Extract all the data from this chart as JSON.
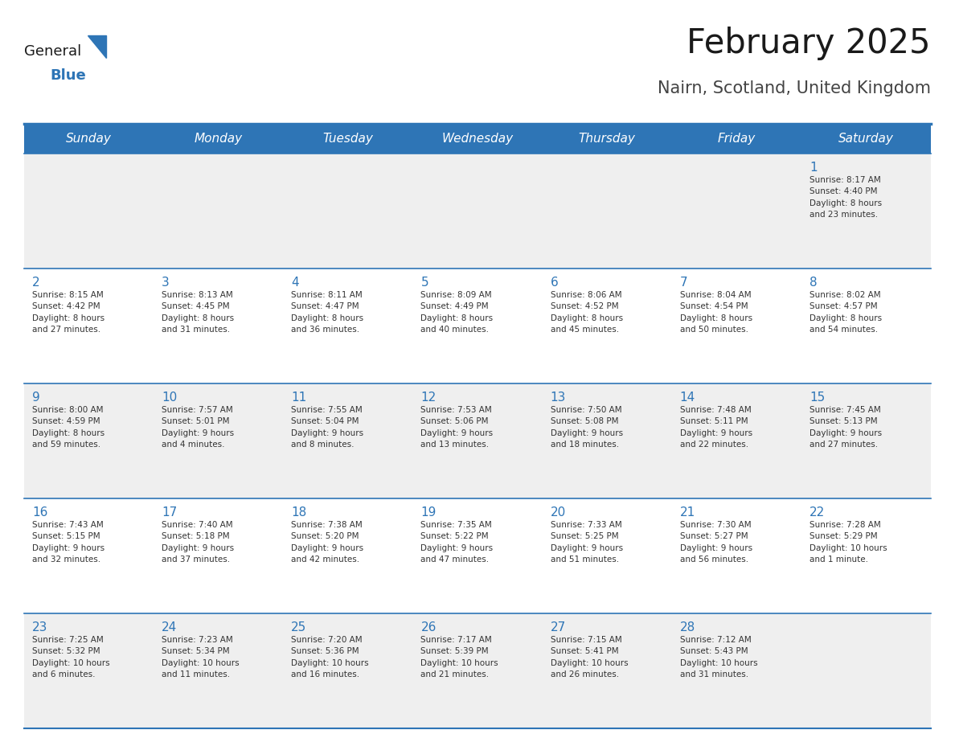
{
  "title": "February 2025",
  "subtitle": "Nairn, Scotland, United Kingdom",
  "header_bg": "#2E75B6",
  "header_text_color": "#FFFFFF",
  "cell_bg_odd": "#EFEFEF",
  "cell_bg_even": "#FFFFFF",
  "border_color": "#2E75B6",
  "text_color": "#333333",
  "day_number_color": "#2E75B6",
  "separator_color": "#2E75B6",
  "days_of_week": [
    "Sunday",
    "Monday",
    "Tuesday",
    "Wednesday",
    "Thursday",
    "Friday",
    "Saturday"
  ],
  "weeks": [
    [
      {
        "day": null,
        "info": null
      },
      {
        "day": null,
        "info": null
      },
      {
        "day": null,
        "info": null
      },
      {
        "day": null,
        "info": null
      },
      {
        "day": null,
        "info": null
      },
      {
        "day": null,
        "info": null
      },
      {
        "day": 1,
        "info": "Sunrise: 8:17 AM\nSunset: 4:40 PM\nDaylight: 8 hours\nand 23 minutes."
      }
    ],
    [
      {
        "day": 2,
        "info": "Sunrise: 8:15 AM\nSunset: 4:42 PM\nDaylight: 8 hours\nand 27 minutes."
      },
      {
        "day": 3,
        "info": "Sunrise: 8:13 AM\nSunset: 4:45 PM\nDaylight: 8 hours\nand 31 minutes."
      },
      {
        "day": 4,
        "info": "Sunrise: 8:11 AM\nSunset: 4:47 PM\nDaylight: 8 hours\nand 36 minutes."
      },
      {
        "day": 5,
        "info": "Sunrise: 8:09 AM\nSunset: 4:49 PM\nDaylight: 8 hours\nand 40 minutes."
      },
      {
        "day": 6,
        "info": "Sunrise: 8:06 AM\nSunset: 4:52 PM\nDaylight: 8 hours\nand 45 minutes."
      },
      {
        "day": 7,
        "info": "Sunrise: 8:04 AM\nSunset: 4:54 PM\nDaylight: 8 hours\nand 50 minutes."
      },
      {
        "day": 8,
        "info": "Sunrise: 8:02 AM\nSunset: 4:57 PM\nDaylight: 8 hours\nand 54 minutes."
      }
    ],
    [
      {
        "day": 9,
        "info": "Sunrise: 8:00 AM\nSunset: 4:59 PM\nDaylight: 8 hours\nand 59 minutes."
      },
      {
        "day": 10,
        "info": "Sunrise: 7:57 AM\nSunset: 5:01 PM\nDaylight: 9 hours\nand 4 minutes."
      },
      {
        "day": 11,
        "info": "Sunrise: 7:55 AM\nSunset: 5:04 PM\nDaylight: 9 hours\nand 8 minutes."
      },
      {
        "day": 12,
        "info": "Sunrise: 7:53 AM\nSunset: 5:06 PM\nDaylight: 9 hours\nand 13 minutes."
      },
      {
        "day": 13,
        "info": "Sunrise: 7:50 AM\nSunset: 5:08 PM\nDaylight: 9 hours\nand 18 minutes."
      },
      {
        "day": 14,
        "info": "Sunrise: 7:48 AM\nSunset: 5:11 PM\nDaylight: 9 hours\nand 22 minutes."
      },
      {
        "day": 15,
        "info": "Sunrise: 7:45 AM\nSunset: 5:13 PM\nDaylight: 9 hours\nand 27 minutes."
      }
    ],
    [
      {
        "day": 16,
        "info": "Sunrise: 7:43 AM\nSunset: 5:15 PM\nDaylight: 9 hours\nand 32 minutes."
      },
      {
        "day": 17,
        "info": "Sunrise: 7:40 AM\nSunset: 5:18 PM\nDaylight: 9 hours\nand 37 minutes."
      },
      {
        "day": 18,
        "info": "Sunrise: 7:38 AM\nSunset: 5:20 PM\nDaylight: 9 hours\nand 42 minutes."
      },
      {
        "day": 19,
        "info": "Sunrise: 7:35 AM\nSunset: 5:22 PM\nDaylight: 9 hours\nand 47 minutes."
      },
      {
        "day": 20,
        "info": "Sunrise: 7:33 AM\nSunset: 5:25 PM\nDaylight: 9 hours\nand 51 minutes."
      },
      {
        "day": 21,
        "info": "Sunrise: 7:30 AM\nSunset: 5:27 PM\nDaylight: 9 hours\nand 56 minutes."
      },
      {
        "day": 22,
        "info": "Sunrise: 7:28 AM\nSunset: 5:29 PM\nDaylight: 10 hours\nand 1 minute."
      }
    ],
    [
      {
        "day": 23,
        "info": "Sunrise: 7:25 AM\nSunset: 5:32 PM\nDaylight: 10 hours\nand 6 minutes."
      },
      {
        "day": 24,
        "info": "Sunrise: 7:23 AM\nSunset: 5:34 PM\nDaylight: 10 hours\nand 11 minutes."
      },
      {
        "day": 25,
        "info": "Sunrise: 7:20 AM\nSunset: 5:36 PM\nDaylight: 10 hours\nand 16 minutes."
      },
      {
        "day": 26,
        "info": "Sunrise: 7:17 AM\nSunset: 5:39 PM\nDaylight: 10 hours\nand 21 minutes."
      },
      {
        "day": 27,
        "info": "Sunrise: 7:15 AM\nSunset: 5:41 PM\nDaylight: 10 hours\nand 26 minutes."
      },
      {
        "day": 28,
        "info": "Sunrise: 7:12 AM\nSunset: 5:43 PM\nDaylight: 10 hours\nand 31 minutes."
      },
      {
        "day": null,
        "info": null
      }
    ]
  ],
  "logo_general_color": "#1a1a1a",
  "logo_blue_color": "#2E75B6",
  "logo_triangle_color": "#2E75B6"
}
